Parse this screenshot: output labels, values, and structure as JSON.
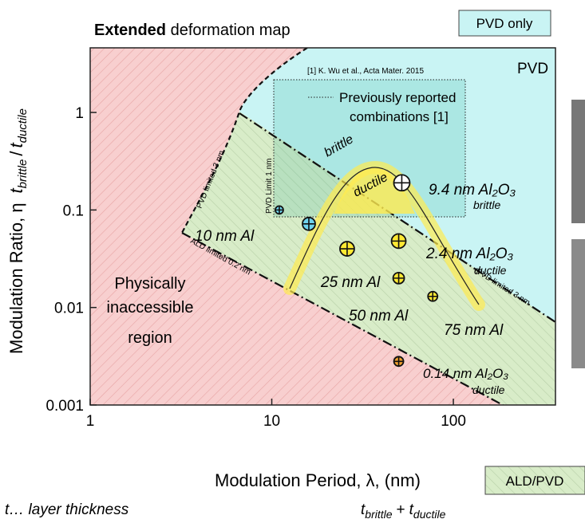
{
  "chart_data": {
    "type": "scatter",
    "title_bold": "Extended",
    "title": "deformation map",
    "xlabel": "Modulation Period, λ, (nm)",
    "ylabel": "Modulation Ratio, η",
    "ylabel_ratio": [
      "t",
      "brittle",
      "/",
      "t",
      "ductile"
    ],
    "xlog": true,
    "ylog": true,
    "xlim": [
      1,
      365
    ],
    "ylim": [
      0.001,
      4.6
    ],
    "xticks": [
      1,
      10,
      100
    ],
    "yticks": [
      0.001,
      0.01,
      0.1,
      1
    ],
    "points": {
      "x": [
        11,
        16,
        26,
        50,
        50,
        77,
        52,
        50
      ],
      "values": [
        0.1,
        0.072,
        0.04,
        0.048,
        0.02,
        0.013,
        0.19,
        0.0028
      ],
      "colors": [
        "#6fd3ee",
        "#6fd3ee",
        "#ffe933",
        "#ffe933",
        "#ffe933",
        "#ffe933",
        "#ffffff",
        "#f0a030"
      ]
    },
    "region_labels": {
      "pvd": "PVD",
      "reference": "[1] K. Wu et al., Acta Mater. 2015",
      "previous": [
        "Previously reported",
        "combinations [1]"
      ],
      "brittle": "brittle",
      "ductile": "ductile",
      "pvd_limit_1": "PVD Limit 1 nm",
      "pvd_limited_3_left": "PVD limited 3 nm",
      "ald_limited": "ALD limited 0.2 nm",
      "pvd_limited_3_right": "PVD limited 3 nm",
      "inaccessible": [
        "Physically",
        "inaccessible",
        "region"
      ]
    },
    "annotations": [
      "9.4 nm Al₂O₃",
      "brittle",
      "10 nm Al",
      "25 nm Al",
      "2.4 nm Al₂O₃",
      "ductile",
      "50 nm Al",
      "75 nm Al",
      "0.14 nm Al₂O₃",
      "ductile"
    ],
    "legend_boxes": [
      "PVD only",
      "ALD/PVD"
    ],
    "footnote": "t… layer thickness",
    "period_formula": [
      "t",
      "brittle",
      "+",
      "t",
      "ductile"
    ]
  }
}
